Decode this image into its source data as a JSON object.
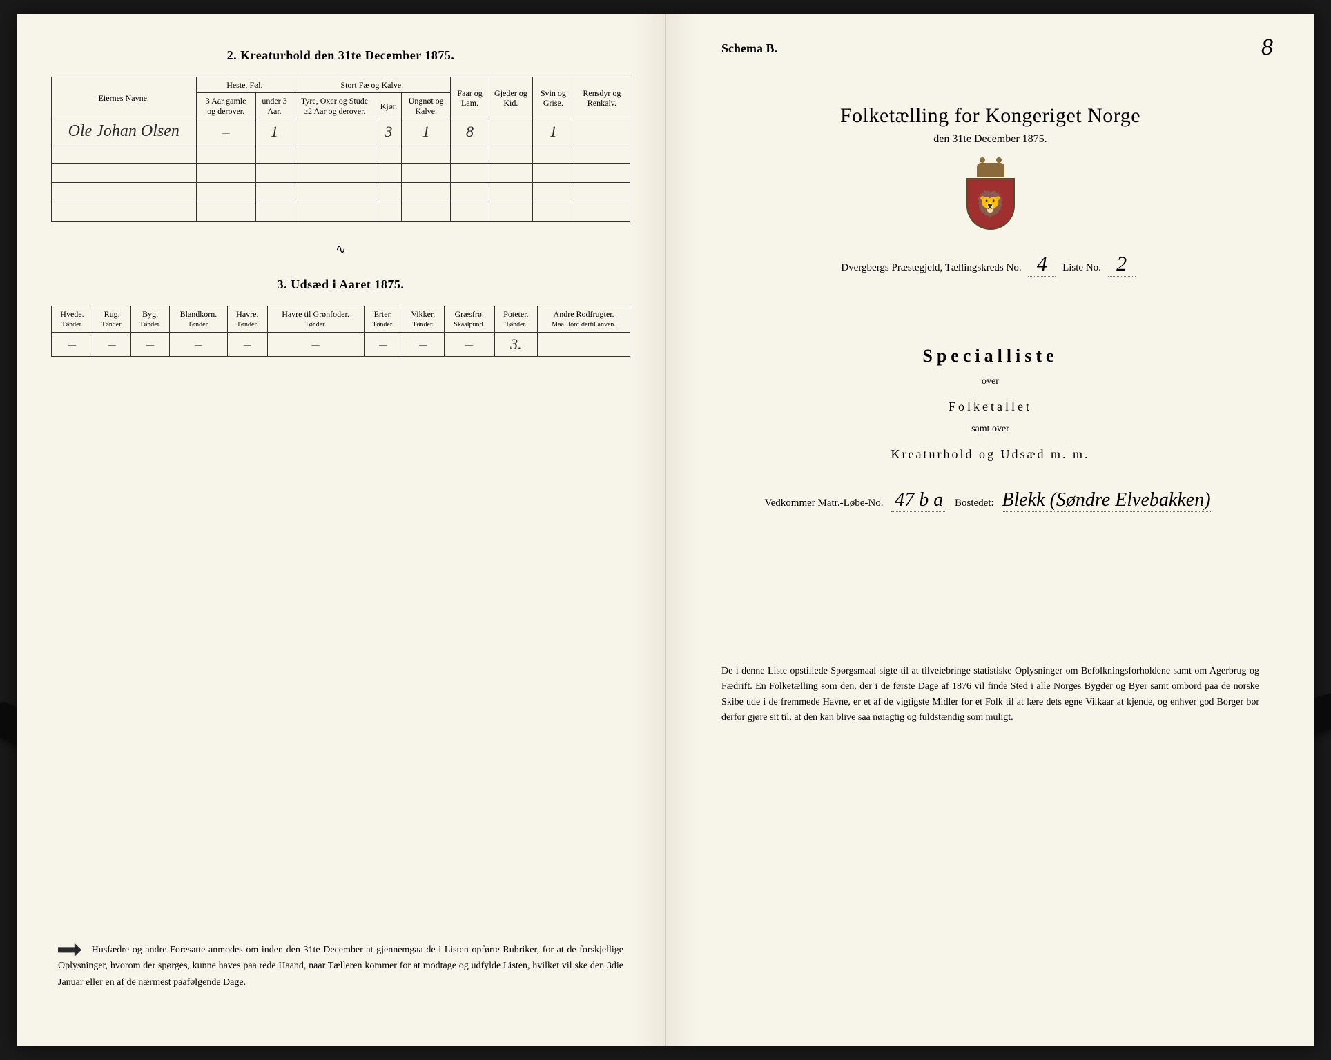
{
  "left": {
    "section2_title": "2.  Kreaturhold den 31te December 1875.",
    "table2": {
      "headers": {
        "name": "Eiernes Navne.",
        "heste_group": "Heste, Føl.",
        "heste_a": "3 Aar gamle og derover.",
        "heste_b": "under 3 Aar.",
        "stort_group": "Stort Fæ og Kalve.",
        "stort_a": "Tyre, Oxer og Stude ≥2 Aar og derover.",
        "stort_b": "Kjør.",
        "stort_c": "Ungnøt og Kalve.",
        "faar": "Faar og Lam.",
        "gjeder": "Gjeder og Kid.",
        "svin": "Svin og Grise.",
        "ren": "Rensdyr og Renkalv."
      },
      "row": {
        "name": "Ole Johan Olsen",
        "heste_a": "–",
        "heste_b": "1",
        "stort_a": "",
        "stort_b": "3",
        "stort_c": "1",
        "faar": "8",
        "gjeder": "",
        "svin": "1",
        "ren": ""
      }
    },
    "section3_title": "3.  Udsæd i Aaret 1875.",
    "table3": {
      "cols": [
        {
          "label": "Hvede.",
          "unit": "Tønder."
        },
        {
          "label": "Rug.",
          "unit": "Tønder."
        },
        {
          "label": "Byg.",
          "unit": "Tønder."
        },
        {
          "label": "Blandkorn.",
          "unit": "Tønder."
        },
        {
          "label": "Havre.",
          "unit": "Tønder."
        },
        {
          "label": "Havre til Grønfoder.",
          "unit": "Tønder."
        },
        {
          "label": "Erter.",
          "unit": "Tønder."
        },
        {
          "label": "Vikker.",
          "unit": "Tønder."
        },
        {
          "label": "Græsfrø.",
          "unit": "Skaalpund."
        },
        {
          "label": "Poteter.",
          "unit": "Tønder."
        },
        {
          "label": "Andre Rodfrugter.",
          "unit": "Maal Jord dertil anven."
        }
      ],
      "values": [
        "–",
        "–",
        "–",
        "–",
        "–",
        "–",
        "–",
        "–",
        "–",
        "3.",
        ""
      ]
    },
    "footnote": "Husfædre og andre Foresatte anmodes om inden den 31te December at gjennemgaa de i Listen opførte Rubriker, for at de forskjellige Oplysninger, hvorom der spørges, kunne haves paa rede Haand, naar Tælleren kommer for at modtage og udfylde Listen, hvilket vil ske den 3die Januar eller en af de nærmest paafølgende Dage."
  },
  "right": {
    "schema": "Schema B.",
    "page_num_hw": "8",
    "title": "Folketælling for Kongeriget Norge",
    "subtitle": "den 31te December 1875.",
    "prestegjeld_prefix": "Dvergbergs Præstegjeld, Tællingskreds No.",
    "kreds_no": "4",
    "liste_label": "Liste No.",
    "liste_no": "2",
    "special_title": "Specialliste",
    "over": "over",
    "folketallet": "Folketallet",
    "samt_over": "samt over",
    "kreatur_line": "Kreaturhold og Udsæd m. m.",
    "vedkommer_label": "Vedkommer Matr.-Løbe-No.",
    "matr_no": "47 b a",
    "bostedet_label": "Bostedet:",
    "bostedet_hw": "Blekk (Søndre Elvebakken)",
    "footnote": "De i denne Liste opstillede Spørgsmaal sigte til at tilveiebringe statistiske Oplysninger om Befolkningsforholdene samt om Agerbrug og Fædrift. En Folketælling som den, der i de første Dage af 1876 vil finde Sted i alle Norges Bygder og Byer samt ombord paa de norske Skibe ude i de fremmede Havne, er et af de vigtigste Midler for et Folk til at lære dets egne Vilkaar at kjende, og enhver god Borger bør derfor gjøre sit til, at den kan blive saa nøiagtig og fuldstændig som muligt."
  }
}
